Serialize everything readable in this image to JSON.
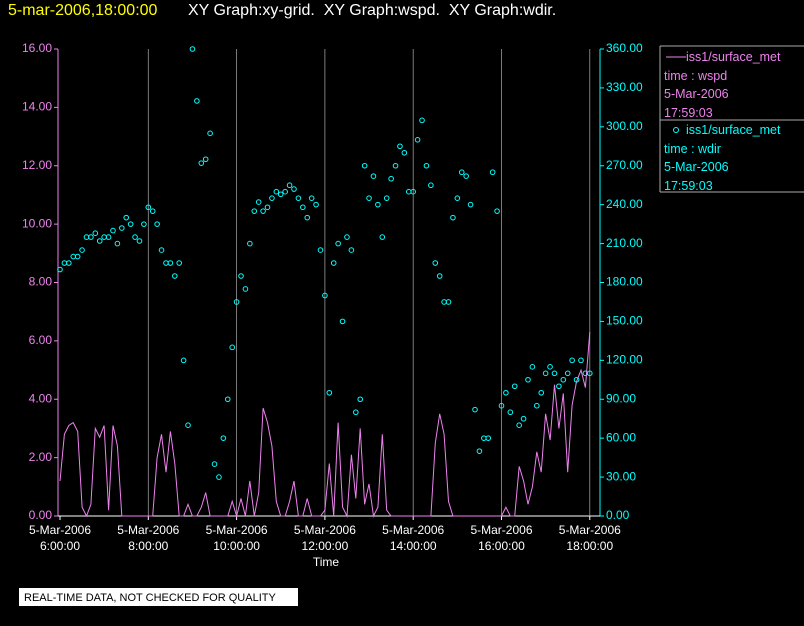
{
  "header": {
    "timestamp": "5-mar-2006,18:00:00",
    "title": "XY Graph:xy-grid.  XY Graph:wspd.  XY Graph:wdir."
  },
  "footer": {
    "notice": "REAL-TIME DATA, NOT CHECKED FOR QUALITY"
  },
  "chart_data": {
    "type": "line",
    "x_label": "Time",
    "grid": true,
    "x": [
      6.0,
      6.1,
      6.2,
      6.3,
      6.4,
      6.5,
      6.6,
      6.7,
      6.8,
      6.9,
      7.0,
      7.1,
      7.2,
      7.3,
      7.4,
      7.5,
      7.6,
      7.7,
      7.8,
      7.9,
      8.0,
      8.1,
      8.2,
      8.3,
      8.4,
      8.5,
      8.6,
      8.7,
      8.8,
      8.9,
      9.0,
      9.1,
      9.2,
      9.3,
      9.4,
      9.5,
      9.6,
      9.7,
      9.8,
      9.9,
      10.0,
      10.1,
      10.2,
      10.3,
      10.4,
      10.5,
      10.6,
      10.7,
      10.8,
      10.9,
      11.0,
      11.1,
      11.2,
      11.3,
      11.4,
      11.5,
      11.6,
      11.7,
      11.8,
      11.9,
      12.0,
      12.1,
      12.2,
      12.3,
      12.4,
      12.5,
      12.6,
      12.7,
      12.8,
      12.9,
      13.0,
      13.1,
      13.2,
      13.3,
      13.4,
      13.5,
      13.6,
      13.7,
      13.8,
      13.9,
      14.0,
      14.1,
      14.2,
      14.3,
      14.4,
      14.5,
      14.6,
      14.7,
      14.8,
      14.9,
      15.0,
      15.1,
      15.2,
      15.3,
      15.4,
      15.5,
      15.6,
      15.7,
      15.8,
      15.9,
      16.0,
      16.1,
      16.2,
      16.3,
      16.4,
      16.5,
      16.6,
      16.7,
      16.8,
      16.9,
      17.0,
      17.1,
      17.2,
      17.3,
      17.4,
      17.5,
      17.6,
      17.7,
      17.8,
      17.9,
      18.0
    ],
    "xlim": [
      6,
      18.05
    ],
    "xticks": [
      {
        "value": 6,
        "label": "5-Mar-2006\n6:00:00"
      },
      {
        "value": 8,
        "label": "5-Mar-2006\n8:00:00"
      },
      {
        "value": 10,
        "label": "5-Mar-2006\n10:00:00"
      },
      {
        "value": 12,
        "label": "5-Mar-2006\n12:00:00"
      },
      {
        "value": 14,
        "label": "5-Mar-2006\n14:00:00"
      },
      {
        "value": 16,
        "label": "5-Mar-2006\n16:00:00"
      },
      {
        "value": 18,
        "label": "5-Mar-2006\n18:00:00"
      }
    ],
    "ylim": [
      0,
      16
    ],
    "yticks": [
      {
        "value": 0,
        "label": "0.00"
      },
      {
        "value": 2,
        "label": "2.00"
      },
      {
        "value": 4,
        "label": "4.00"
      },
      {
        "value": 6,
        "label": "6.00"
      },
      {
        "value": 8,
        "label": "8.00"
      },
      {
        "value": 10,
        "label": "10.00"
      },
      {
        "value": 12,
        "label": "12.00"
      },
      {
        "value": 14,
        "label": "14.00"
      },
      {
        "value": 16,
        "label": "16.00"
      }
    ],
    "y2lim": [
      0,
      360
    ],
    "y2ticks": [
      {
        "value": 0,
        "label": "0.00"
      },
      {
        "value": 30,
        "label": "30.00"
      },
      {
        "value": 60,
        "label": "60.00"
      },
      {
        "value": 90,
        "label": "90.00"
      },
      {
        "value": 120,
        "label": "120.00"
      },
      {
        "value": 150,
        "label": "150.00"
      },
      {
        "value": 180,
        "label": "180.00"
      },
      {
        "value": 210,
        "label": "210.00"
      },
      {
        "value": 240,
        "label": "240.00"
      },
      {
        "value": 270,
        "label": "270.00"
      },
      {
        "value": 300,
        "label": "300.00"
      },
      {
        "value": 330,
        "label": "330.00"
      },
      {
        "value": 360,
        "label": "360.00"
      }
    ],
    "series": [
      {
        "name": "iss1/surface_met",
        "legend_text": [
          "time : wspd",
          "5-Mar-2006",
          "17:59:03"
        ],
        "style": "line",
        "color": "#ee82ee",
        "values": [
          1.2,
          2.8,
          3.1,
          3.2,
          2.9,
          0.3,
          0,
          0.4,
          3.0,
          2.7,
          3.1,
          0.2,
          3.1,
          2.4,
          0,
          0,
          0,
          0,
          0,
          0,
          0,
          0,
          2.0,
          2.8,
          1.5,
          2.9,
          1.8,
          0,
          0,
          0.4,
          0,
          0,
          0.3,
          0.8,
          0,
          0,
          0,
          0,
          0,
          0.5,
          0,
          0.6,
          0,
          1.2,
          0,
          0.8,
          3.7,
          3.2,
          2.4,
          0.5,
          0,
          0,
          0.5,
          1.2,
          0,
          0,
          0.6,
          0,
          0,
          0,
          0.2,
          1.8,
          0,
          3.2,
          0.3,
          0,
          2.1,
          0.6,
          3.0,
          0.4,
          1.1,
          0,
          0.3,
          2.8,
          0.2,
          0,
          0,
          0,
          0,
          0,
          0,
          0,
          0,
          0,
          0,
          2.5,
          3.5,
          2.8,
          0.5,
          0,
          0,
          0,
          0,
          0,
          0,
          0,
          0,
          0,
          0,
          0,
          0,
          0.3,
          0,
          0,
          1.7,
          1.2,
          0.4,
          1.0,
          2.2,
          1.5,
          3.5,
          2.6,
          4.5,
          3.0,
          4.2,
          1.5,
          3.8,
          4.6,
          5.0,
          4.4,
          6.3
        ]
      },
      {
        "name": "iss1/surface_met",
        "legend_text": [
          "time : wdir",
          "5-Mar-2006",
          "17:59:03"
        ],
        "style": "scatter",
        "axis": "y2",
        "color": "#00ffff",
        "values": [
          190,
          195,
          195,
          200,
          200,
          205,
          215,
          215,
          218,
          212,
          215,
          215,
          220,
          210,
          222,
          230,
          225,
          215,
          212,
          225,
          238,
          235,
          225,
          205,
          195,
          195,
          185,
          195,
          120,
          70,
          360,
          320,
          272,
          275,
          295,
          40,
          30,
          60,
          90,
          130,
          165,
          185,
          175,
          210,
          235,
          242,
          235,
          238,
          245,
          250,
          248,
          250,
          255,
          252,
          245,
          238,
          230,
          245,
          240,
          205,
          170,
          95,
          195,
          210,
          150,
          215,
          205,
          80,
          90,
          270,
          245,
          262,
          240,
          215,
          245,
          260,
          270,
          285,
          280,
          250,
          250,
          290,
          305,
          270,
          255,
          195,
          185,
          165,
          165,
          230,
          245,
          265,
          262,
          240,
          82,
          50,
          60,
          60,
          265,
          235,
          85,
          95,
          80,
          100,
          70,
          75,
          105,
          115,
          85,
          95,
          110,
          115,
          110,
          100,
          105,
          110,
          120,
          105,
          120,
          110,
          110
        ]
      }
    ]
  }
}
